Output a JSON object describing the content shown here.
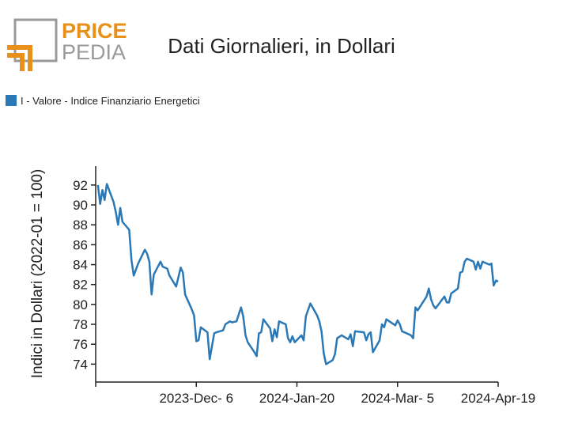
{
  "logo": {
    "top": "PRICE",
    "bottom": "PEDIA"
  },
  "chart_data": {
    "type": "line",
    "title": "Dati Giornalieri, in Dollari",
    "ylabel": "Indici in Dollari (2022-01 = 100)",
    "legend": "top-left",
    "series": [
      {
        "name": "I - Valore - Indice Finanziario Energetici",
        "color": "#2a78b5",
        "x": [
          "2023-10-23",
          "2023-10-24",
          "2023-10-25",
          "2023-10-26",
          "2023-10-27",
          "2023-10-30",
          "2023-10-31",
          "2023-11-01",
          "2023-11-02",
          "2023-11-03",
          "2023-11-06",
          "2023-11-07",
          "2023-11-08",
          "2023-11-09",
          "2023-11-10",
          "2023-11-13",
          "2023-11-14",
          "2023-11-15",
          "2023-11-16",
          "2023-11-17",
          "2023-11-20",
          "2023-11-21",
          "2023-11-23",
          "2023-11-24",
          "2023-11-27",
          "2023-11-29",
          "2023-11-30",
          "2023-12-01",
          "2023-12-04",
          "2023-12-05",
          "2023-12-06",
          "2023-12-07",
          "2023-12-08",
          "2023-12-11",
          "2023-12-12",
          "2023-12-14",
          "2023-12-15",
          "2023-12-18",
          "2023-12-19",
          "2023-12-21",
          "2023-12-22",
          "2023-12-24",
          "2023-12-26",
          "2023-12-27",
          "2023-12-28",
          "2023-12-29",
          "2024-01-01",
          "2024-01-02",
          "2024-01-03",
          "2024-01-04",
          "2024-01-05",
          "2024-01-08",
          "2024-01-09",
          "2024-01-10",
          "2024-01-11",
          "2024-01-12",
          "2024-01-15",
          "2024-01-16",
          "2024-01-17",
          "2024-01-18",
          "2024-01-19",
          "2024-01-22",
          "2024-01-23",
          "2024-01-24",
          "2024-01-26",
          "2024-01-29",
          "2024-01-30",
          "2024-01-31",
          "2024-02-01",
          "2024-02-02",
          "2024-02-05",
          "2024-02-06",
          "2024-02-07",
          "2024-02-09",
          "2024-02-12",
          "2024-02-13",
          "2024-02-14",
          "2024-02-15",
          "2024-02-19",
          "2024-02-20",
          "2024-02-21",
          "2024-02-22",
          "2024-02-23",
          "2024-02-26",
          "2024-02-27",
          "2024-02-28",
          "2024-02-29",
          "2024-03-04",
          "2024-03-05",
          "2024-03-06",
          "2024-03-07",
          "2024-03-11",
          "2024-03-12",
          "2024-03-13",
          "2024-03-14",
          "2024-03-18",
          "2024-03-19",
          "2024-03-20",
          "2024-03-21",
          "2024-03-22",
          "2024-03-26",
          "2024-03-27",
          "2024-03-28",
          "2024-03-29",
          "2024-04-01",
          "2024-04-02",
          "2024-04-03",
          "2024-04-04",
          "2024-04-05",
          "2024-04-08",
          "2024-04-09",
          "2024-04-10",
          "2024-04-11",
          "2024-04-12",
          "2024-04-15",
          "2024-04-16",
          "2024-04-17",
          "2024-04-18",
          "2024-04-19"
        ],
        "values": [
          92.0,
          90.1,
          91.5,
          90.5,
          92.1,
          90.3,
          89.3,
          88.0,
          89.7,
          88.3,
          87.5,
          84.5,
          82.9,
          83.5,
          84.1,
          85.5,
          85.1,
          84.3,
          81.0,
          83.0,
          84.3,
          83.8,
          83.6,
          82.9,
          81.8,
          83.7,
          83.2,
          81.0,
          79.5,
          78.9,
          76.3,
          76.4,
          77.7,
          77.2,
          74.5,
          77.1,
          77.2,
          77.4,
          78.0,
          78.3,
          78.2,
          78.3,
          79.7,
          78.8,
          76.9,
          76.2,
          75.2,
          74.8,
          77.1,
          77.2,
          78.5,
          77.6,
          76.3,
          77.5,
          76.7,
          78.3,
          78.0,
          76.6,
          76.2,
          76.8,
          76.2,
          76.9,
          76.4,
          78.8,
          80.1,
          78.9,
          78.3,
          77.3,
          75.1,
          74.0,
          74.4,
          75.0,
          76.6,
          76.9,
          76.5,
          77.0,
          75.8,
          77.3,
          77.2,
          76.4,
          77.0,
          77.2,
          75.2,
          76.4,
          78.0,
          77.7,
          78.5,
          77.9,
          78.4,
          78.0,
          77.3,
          76.9,
          76.6,
          79.7,
          79.4,
          80.8,
          81.6,
          80.5,
          79.9,
          79.6,
          80.8,
          80.2,
          80.2,
          81.1,
          81.6,
          83.2,
          83.3,
          84.3,
          84.6,
          84.3,
          83.5,
          84.3,
          83.6,
          84.3,
          84.0,
          84.1,
          81.9,
          82.4,
          82.3
        ]
      }
    ],
    "xlim": [
      "2023-10-22",
      "2024-04-19"
    ],
    "xticks": [
      {
        "value": "2023-10-22",
        "label": null
      },
      {
        "value": "2023-12-06",
        "label": "2023-Dec- 6"
      },
      {
        "value": "2024-01-20",
        "label": "2024-Jan-20"
      },
      {
        "value": "2024-03-05",
        "label": "2024-Mar- 5"
      },
      {
        "value": "2024-04-19",
        "label": "2024-Apr-19"
      }
    ],
    "ylim": [
      72.2,
      93.9
    ],
    "yticks": [
      74,
      76,
      78,
      80,
      82,
      84,
      86,
      88,
      90,
      92
    ]
  }
}
